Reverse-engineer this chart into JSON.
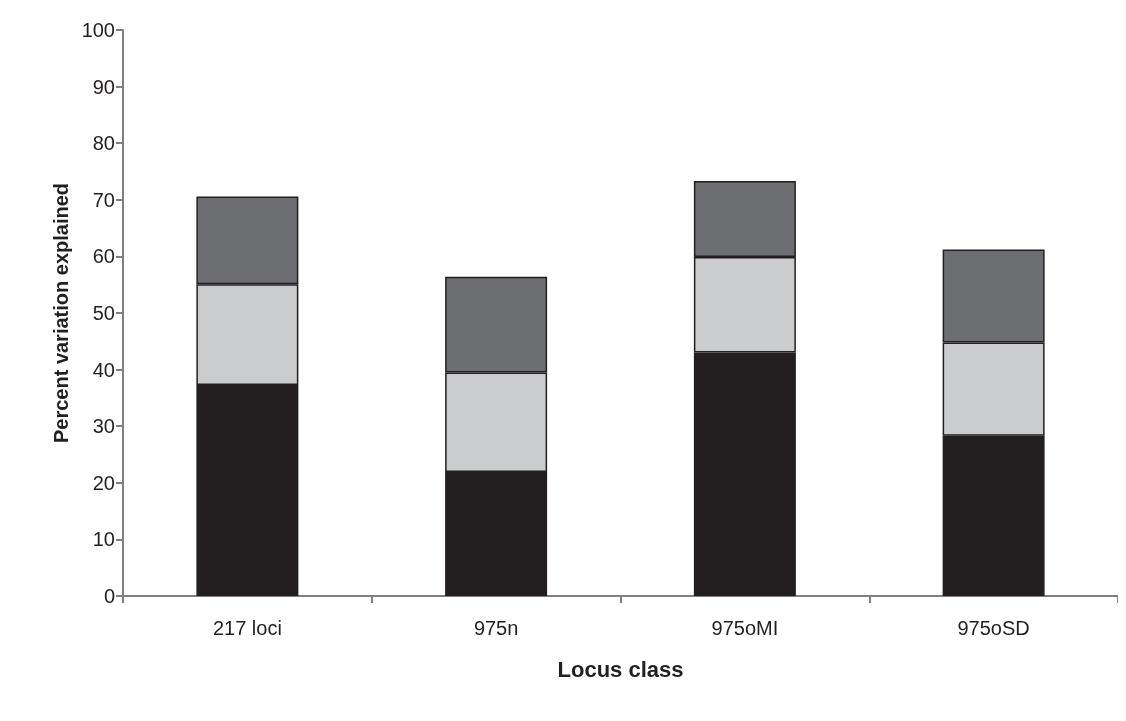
{
  "chart_data": {
    "type": "bar",
    "xlabel": "Locus class",
    "ylabel": "Percent variation explained",
    "categories": [
      "217 loci",
      "975n",
      "975oMI",
      "975oSD"
    ],
    "stacked": true,
    "series": [
      {
        "color": "#231f20",
        "values": [
          37.3,
          21.9,
          43.0,
          28.3
        ]
      },
      {
        "color": "#cbcccd",
        "values": [
          17.8,
          17.6,
          16.9,
          16.5
        ]
      },
      {
        "color": "#6d6e71",
        "values": [
          15.5,
          16.9,
          13.4,
          16.4
        ]
      }
    ],
    "ylim": [
      0,
      100
    ],
    "yticks": [
      0,
      10,
      20,
      30,
      40,
      50,
      60,
      70,
      80,
      90,
      100
    ],
    "grid": false
  }
}
